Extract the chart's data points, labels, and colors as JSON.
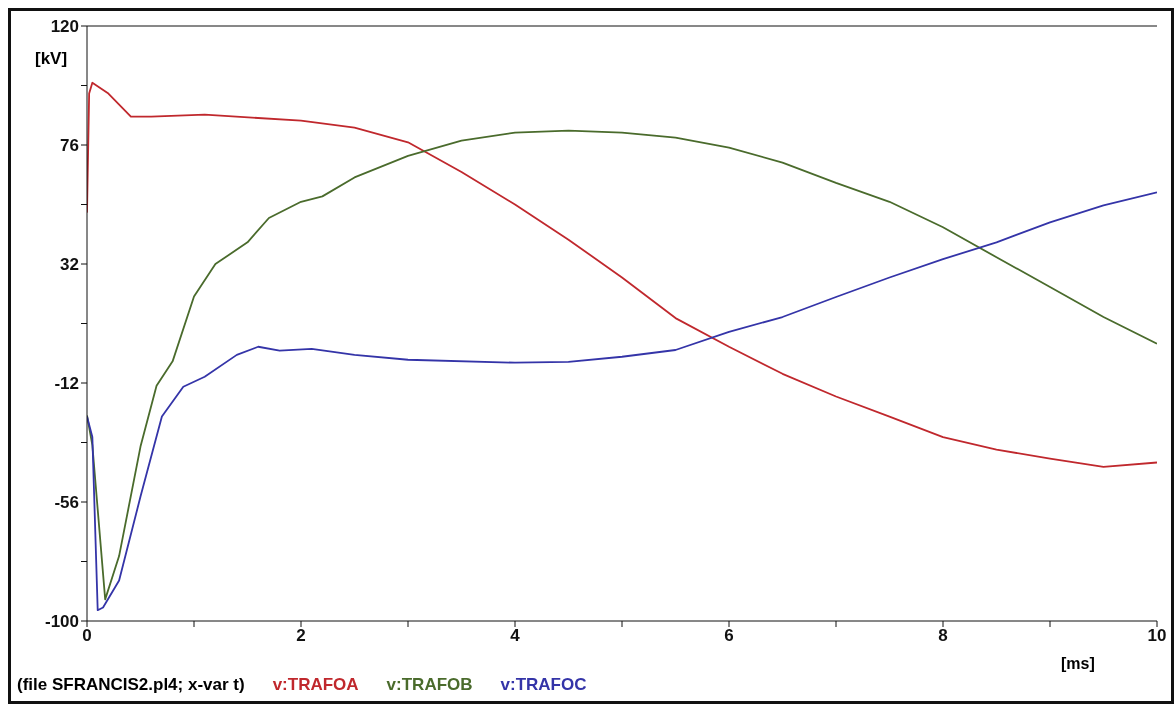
{
  "chart_data": {
    "type": "line",
    "xlabel": "[ms]",
    "ylabel": "[kV]",
    "annotations": [
      "(file SFRANCIS2.pl4; x-var t)"
    ],
    "xlim": [
      0,
      10
    ],
    "ylim": [
      -100,
      120
    ],
    "xticks": [
      0,
      {
        "value": 1,
        "label": null
      },
      2,
      {
        "value": 3,
        "label": null
      },
      4,
      {
        "value": 5,
        "label": null
      },
      6,
      {
        "value": 7,
        "label": null
      },
      8,
      {
        "value": 9,
        "label": null
      },
      10
    ],
    "yticks": [
      -100,
      {
        "value": -78,
        "label": null
      },
      -56,
      {
        "value": -34,
        "label": null
      },
      -12,
      {
        "value": 10,
        "label": null
      },
      32,
      {
        "value": 54,
        "label": null
      },
      76,
      {
        "value": 98,
        "label": null
      },
      120
    ],
    "grid": false,
    "legend": "bottom",
    "marker": "none",
    "line_style": "solid",
    "series": [
      {
        "name": "v:TRAFOA",
        "color": "#c0282d",
        "x": [
          0,
          0.02,
          0.05,
          0.2,
          0.41,
          0.6,
          1.1,
          2,
          2.5,
          3,
          3.5,
          4,
          4.5,
          5,
          5.5,
          6,
          6.5,
          7,
          7.5,
          8,
          8.5,
          9,
          9.5,
          10
        ],
        "values": [
          51,
          95,
          99,
          95,
          86.5,
          86.5,
          87.2,
          85,
          82.4,
          77,
          66,
          54,
          41,
          27,
          12,
          1.4,
          -8.6,
          -17,
          -24.4,
          -32,
          -36.6,
          -40,
          -43,
          -41.4
        ]
      },
      {
        "name": "v:TRAFOB",
        "color": "#4a6b2c",
        "x": [
          0,
          0.05,
          0.17,
          0.3,
          0.5,
          0.65,
          0.8,
          1,
          1.2,
          1.5,
          1.7,
          2,
          2.2,
          2.5,
          3,
          3.5,
          4,
          4.5,
          5,
          5.5,
          6,
          6.5,
          7,
          7.5,
          8,
          8.5,
          9,
          9.5,
          10
        ],
        "values": [
          -24,
          -35,
          -92,
          -76,
          -35.5,
          -13,
          -4,
          20,
          32,
          40,
          49,
          55,
          57,
          64,
          72,
          77.6,
          80.6,
          81.3,
          80.6,
          78.7,
          75,
          69.5,
          62,
          55,
          45.6,
          34.5,
          23.5,
          12.4,
          2.5
        ]
      },
      {
        "name": "v:TRAFOC",
        "color": "#3434a8",
        "x": [
          0,
          0.05,
          0.1,
          0.15,
          0.3,
          0.5,
          0.7,
          0.9,
          1.1,
          1.4,
          1.6,
          1.8,
          2.1,
          2.5,
          3,
          4,
          4.5,
          5,
          5.5,
          6,
          6.5,
          7,
          7.5,
          8,
          8.5,
          9,
          9.5,
          10
        ],
        "values": [
          -24.4,
          -32,
          -96,
          -95,
          -85,
          -54,
          -24.4,
          -13.4,
          -9.7,
          -1.6,
          1.4,
          0,
          0.6,
          -1.6,
          -3.4,
          -4.5,
          -4.2,
          -2.3,
          0.2,
          6.9,
          12.4,
          19.8,
          27,
          33.8,
          40,
          47.4,
          53.7,
          58.5
        ]
      }
    ]
  }
}
